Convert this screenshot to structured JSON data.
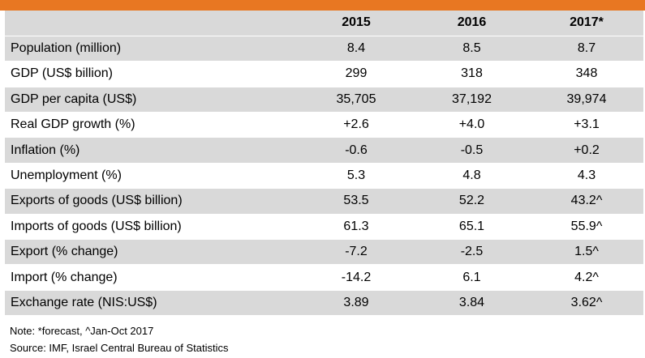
{
  "colors": {
    "accent": "#e87722",
    "row_shade": "#d9d9d9"
  },
  "table": {
    "headers": [
      "",
      "2015",
      "2016",
      "2017*"
    ],
    "rows": [
      [
        "Population (million)",
        "8.4",
        "8.5",
        "8.7"
      ],
      [
        "GDP (US$ billion)",
        "299",
        "318",
        "348"
      ],
      [
        "GDP per capita (US$)",
        "35,705",
        "37,192",
        "39,974"
      ],
      [
        "Real GDP growth (%)",
        "+2.6",
        "+4.0",
        "+3.1"
      ],
      [
        "Inflation (%)",
        "-0.6",
        "-0.5",
        "+0.2"
      ],
      [
        "Unemployment (%)",
        "5.3",
        "4.8",
        "4.3"
      ],
      [
        "Exports of goods (US$ billion)",
        "53.5",
        "52.2",
        "43.2^"
      ],
      [
        "Imports of goods (US$ billion)",
        "61.3",
        "65.1",
        "55.9^"
      ],
      [
        "Export (% change)",
        "-7.2",
        "-2.5",
        "1.5^"
      ],
      [
        "Import (% change)",
        "-14.2",
        "6.1",
        "4.2^"
      ],
      [
        "Exchange rate (NIS:US$)",
        "3.89",
        "3.84",
        "3.62^"
      ]
    ]
  },
  "notes": {
    "note": "Note: *forecast, ^Jan-Oct 2017",
    "source": "Source: IMF, Israel Central Bureau of Statistics"
  }
}
